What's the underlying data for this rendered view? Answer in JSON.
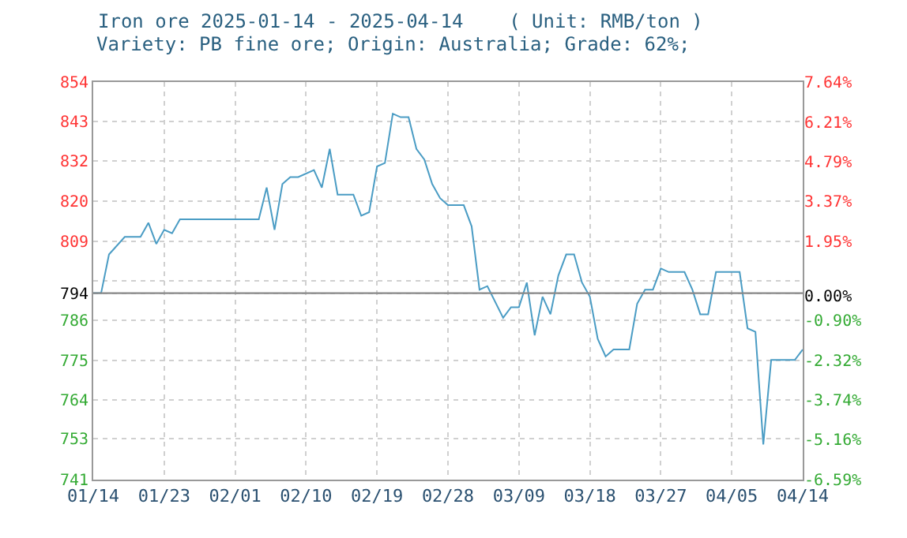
{
  "chart_data": {
    "type": "line",
    "title": "Iron ore 2025-01-14 - 2025-04-14    ( Unit: RMB/ton )",
    "subtitle": "Variety: PB fine ore; Origin: Australia; Grade: 62%;",
    "x": [
      "2025-01-14",
      "2025-01-15",
      "2025-01-16",
      "2025-01-18",
      "2025-01-20",
      "2025-01-21",
      "2025-01-22",
      "2025-01-23",
      "2025-01-24",
      "2025-01-25",
      "2025-02-04",
      "2025-02-05",
      "2025-02-06",
      "2025-02-07",
      "2025-02-08",
      "2025-02-09",
      "2025-02-11",
      "2025-02-12",
      "2025-02-13",
      "2025-02-14",
      "2025-02-16",
      "2025-02-17",
      "2025-02-18",
      "2025-02-19",
      "2025-02-20",
      "2025-02-21",
      "2025-02-22",
      "2025-02-23",
      "2025-02-24",
      "2025-02-25",
      "2025-02-26",
      "2025-02-27",
      "2025-02-28",
      "2025-03-02",
      "2025-03-03",
      "2025-03-04",
      "2025-03-05",
      "2025-03-07",
      "2025-03-08",
      "2025-03-09",
      "2025-03-10",
      "2025-03-11",
      "2025-03-12",
      "2025-03-13",
      "2025-03-14",
      "2025-03-15",
      "2025-03-16",
      "2025-03-17",
      "2025-03-18",
      "2025-03-19",
      "2025-03-20",
      "2025-03-21",
      "2025-03-23",
      "2025-03-24",
      "2025-03-25",
      "2025-03-26",
      "2025-03-27",
      "2025-03-28",
      "2025-03-30",
      "2025-03-31",
      "2025-04-01",
      "2025-04-02",
      "2025-04-03",
      "2025-04-06",
      "2025-04-07",
      "2025-04-08",
      "2025-04-09",
      "2025-04-10",
      "2025-04-13",
      "2025-04-14"
    ],
    "series": [
      {
        "color": "#4a9cc4",
        "values": [
          794,
          794,
          805,
          810,
          810,
          814,
          808,
          812,
          811,
          815,
          815,
          824,
          812,
          825,
          827,
          827,
          829,
          824,
          835,
          822,
          822,
          816,
          817,
          830,
          831,
          845,
          844,
          844,
          835,
          832,
          825,
          821,
          819,
          819,
          813,
          795,
          796,
          787,
          790,
          790,
          797,
          782,
          793,
          788,
          799,
          805,
          805,
          797,
          793,
          781,
          776,
          778,
          778,
          791,
          795,
          795,
          801,
          800,
          800,
          795,
          788,
          788,
          800,
          800,
          784,
          783,
          751,
          775,
          775,
          778
        ]
      }
    ],
    "xlim": [
      "2025-01-14",
      "2025-04-14"
    ],
    "xticks": [
      {
        "value": "2025-01-14",
        "label": "01/14"
      },
      {
        "value": "2025-01-23",
        "label": "01/23"
      },
      {
        "value": "2025-02-01",
        "label": "02/01"
      },
      {
        "value": "2025-02-10",
        "label": "02/10"
      },
      {
        "value": "2025-02-19",
        "label": "02/19"
      },
      {
        "value": "2025-02-28",
        "label": "02/28"
      },
      {
        "value": "2025-03-09",
        "label": "03/09"
      },
      {
        "value": "2025-03-18",
        "label": "03/18"
      },
      {
        "value": "2025-03-27",
        "label": "03/27"
      },
      {
        "value": "2025-04-05",
        "label": "04/05"
      },
      {
        "value": "2025-04-14",
        "label": "04/14"
      }
    ],
    "ylim": [
      741,
      854
    ],
    "yticks": [
      {
        "value": 854,
        "label": "854"
      },
      {
        "value": 842.7,
        "label": "843"
      },
      {
        "value": 831.6,
        "label": "832"
      },
      {
        "value": 820.1,
        "label": "820"
      },
      {
        "value": 808.8,
        "label": "809"
      },
      {
        "value": 797.5,
        "label": null
      },
      {
        "value": 794,
        "label": "794"
      },
      {
        "value": 786.2,
        "label": "786"
      },
      {
        "value": 774.9,
        "label": "775"
      },
      {
        "value": 763.6,
        "label": "764"
      },
      {
        "value": 752.6,
        "label": "753"
      },
      {
        "value": 741,
        "label": "741"
      }
    ],
    "y2lim": [
      -6.59,
      7.64
    ],
    "y2ticks": [
      {
        "value": 7.64,
        "label": "7.64%"
      },
      {
        "value": 6.21,
        "label": "6.21%"
      },
      {
        "value": 4.79,
        "label": "4.79%"
      },
      {
        "value": 3.37,
        "label": "3.37%"
      },
      {
        "value": 1.95,
        "label": "1.95%"
      },
      {
        "value": 0,
        "label": "0.00%"
      },
      {
        "value": -0.9,
        "label": "-0.90%"
      },
      {
        "value": -2.32,
        "label": "-2.32%"
      },
      {
        "value": -3.74,
        "label": "-3.74%"
      },
      {
        "value": -5.16,
        "label": "-5.16%"
      },
      {
        "value": -6.59,
        "label": "-6.59%"
      }
    ],
    "ref_lines": [
      {
        "axis": "y",
        "value": 794,
        "color": "#888888"
      }
    ],
    "grid": true,
    "marker": "none",
    "line_style": "solid"
  }
}
